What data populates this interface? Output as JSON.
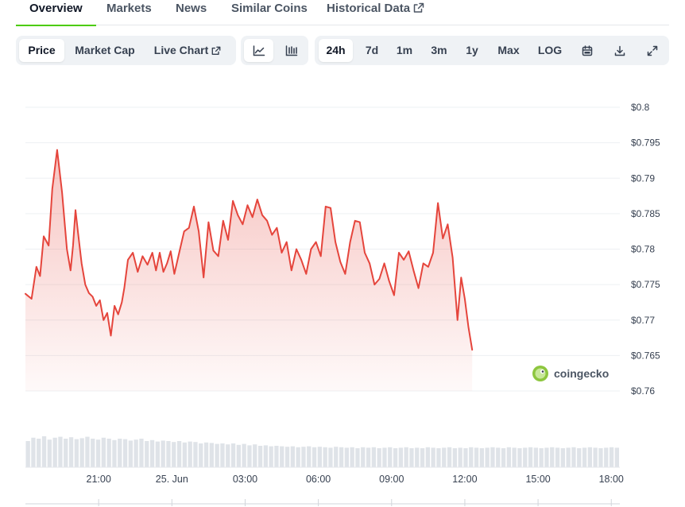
{
  "nav": {
    "tabs": [
      {
        "label": "Overview"
      },
      {
        "label": "Markets"
      },
      {
        "label": "News"
      },
      {
        "label": "Similar Coins"
      },
      {
        "label": "Historical Data"
      }
    ]
  },
  "toolbar": {
    "metrics": [
      "Price",
      "Market Cap",
      "Live Chart"
    ],
    "ranges": [
      "24h",
      "7d",
      "1m",
      "3m",
      "1y",
      "Max",
      "LOG"
    ]
  },
  "watermark": "coingecko",
  "colors": {
    "line": "#e5453c",
    "accent": "#4bcc00"
  },
  "chart_data": {
    "type": "area",
    "title": "",
    "xlabel": "",
    "ylabel": "",
    "ylim": [
      0.76,
      0.8
    ],
    "y_ticks": [
      "$0.8",
      "$0.795",
      "$0.79",
      "$0.785",
      "$0.78",
      "$0.775",
      "$0.77",
      "$0.765",
      "$0.76"
    ],
    "x_ticks": [
      "21:00",
      "25. Jun",
      "03:00",
      "06:00",
      "09:00",
      "12:00",
      "15:00",
      "18:00"
    ],
    "grid": true,
    "x_start": "24 Jun 18:00",
    "x_end": "25 Jun 18:20",
    "series": [
      {
        "x_hours": [
          0,
          0.25,
          0.45,
          0.6,
          0.75,
          0.95,
          1.1,
          1.3,
          1.5,
          1.7,
          1.85,
          1.95,
          2.05,
          2.15,
          2.3,
          2.45,
          2.6,
          2.75,
          2.9,
          3.05,
          3.2,
          3.35,
          3.5,
          3.65,
          3.8,
          3.95,
          4.05,
          4.2,
          4.4,
          4.6,
          4.8,
          5.0,
          5.2,
          5.35,
          5.5,
          5.65,
          5.8,
          5.95,
          6.1,
          6.3,
          6.5,
          6.7,
          6.9,
          7.1,
          7.3,
          7.5,
          7.7,
          7.9,
          8.1,
          8.3,
          8.5,
          8.7,
          8.9,
          9.1,
          9.3,
          9.5,
          9.7,
          9.9,
          10.1,
          10.3,
          10.5,
          10.7,
          10.9,
          11.1,
          11.3,
          11.5,
          11.7,
          11.9,
          12.1,
          12.3,
          12.5,
          12.7,
          12.9,
          13.1,
          13.3,
          13.5,
          13.7,
          13.9,
          14.1,
          14.3,
          14.5,
          14.7,
          14.9,
          15.1,
          15.3,
          15.5,
          15.7,
          15.9,
          16.1,
          16.3,
          16.5,
          16.7,
          16.9,
          17.1,
          17.3,
          17.5,
          17.7,
          17.85,
          18.0,
          18.15,
          18.3
        ],
        "values": [
          0.7737,
          0.773,
          0.7775,
          0.7762,
          0.7818,
          0.7805,
          0.7885,
          0.794,
          0.788,
          0.78,
          0.777,
          0.7805,
          0.7855,
          0.7825,
          0.778,
          0.775,
          0.7738,
          0.7733,
          0.772,
          0.7728,
          0.77,
          0.771,
          0.7678,
          0.772,
          0.7708,
          0.7725,
          0.7745,
          0.7785,
          0.7795,
          0.7768,
          0.779,
          0.7778,
          0.7795,
          0.777,
          0.7795,
          0.7768,
          0.778,
          0.7797,
          0.7765,
          0.7795,
          0.7825,
          0.783,
          0.786,
          0.7825,
          0.776,
          0.7838,
          0.7798,
          0.779,
          0.784,
          0.7813,
          0.7868,
          0.7848,
          0.7835,
          0.7862,
          0.7845,
          0.787,
          0.7848,
          0.784,
          0.782,
          0.783,
          0.7795,
          0.781,
          0.777,
          0.78,
          0.7785,
          0.7765,
          0.78,
          0.781,
          0.779,
          0.786,
          0.7858,
          0.781,
          0.7782,
          0.7765,
          0.781,
          0.784,
          0.7838,
          0.7795,
          0.778,
          0.775,
          0.7758,
          0.778,
          0.7755,
          0.7735,
          0.7795,
          0.7785,
          0.7797,
          0.777,
          0.7745,
          0.778,
          0.7775,
          0.7795,
          0.7865,
          0.7815,
          0.7835,
          0.7788,
          0.77,
          0.776,
          0.773,
          0.769,
          0.7658
        ]
      }
    ],
    "volume": [
      0.55,
      0.62,
      0.6,
      0.65,
      0.58,
      0.62,
      0.64,
      0.6,
      0.63,
      0.59,
      0.61,
      0.64,
      0.6,
      0.58,
      0.62,
      0.6,
      0.57,
      0.6,
      0.59,
      0.56,
      0.58,
      0.6,
      0.55,
      0.57,
      0.54,
      0.56,
      0.55,
      0.53,
      0.55,
      0.52,
      0.54,
      0.53,
      0.5,
      0.52,
      0.51,
      0.49,
      0.5,
      0.48,
      0.5,
      0.47,
      0.49,
      0.46,
      0.48,
      0.45,
      0.46,
      0.44,
      0.45,
      0.44,
      0.43,
      0.44,
      0.42,
      0.43,
      0.44,
      0.42,
      0.43,
      0.42,
      0.41,
      0.43,
      0.42,
      0.41,
      0.42,
      0.4,
      0.42,
      0.41,
      0.42,
      0.4,
      0.41,
      0.42,
      0.4,
      0.41,
      0.42,
      0.4,
      0.41,
      0.4,
      0.42,
      0.41,
      0.4,
      0.41,
      0.42,
      0.4,
      0.41,
      0.4,
      0.42,
      0.41,
      0.4,
      0.41,
      0.42,
      0.41,
      0.4,
      0.42,
      0.41,
      0.4,
      0.41,
      0.42,
      0.41,
      0.4,
      0.41,
      0.42,
      0.41,
      0.4,
      0.41,
      0.42,
      0.4,
      0.41,
      0.42,
      0.41,
      0.4,
      0.41,
      0.42,
      0.41
    ]
  }
}
